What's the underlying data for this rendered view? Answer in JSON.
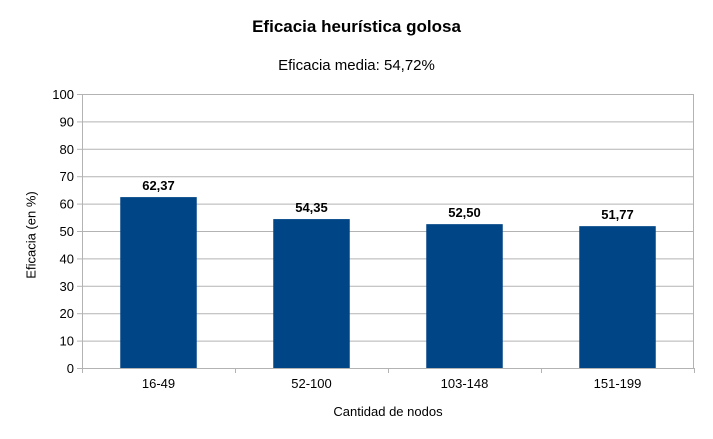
{
  "chart_data": {
    "type": "bar",
    "title": "Eficacia heurística golosa",
    "subtitle": "Eficacia media: 54,72%",
    "xlabel": "Cantidad de nodos",
    "ylabel": "Eficacia (en %)",
    "categories": [
      "16-49",
      "52-100",
      "103-148",
      "151-199"
    ],
    "values": [
      62.37,
      54.35,
      52.5,
      51.77
    ],
    "value_labels": [
      "62,37",
      "54,35",
      "52,50",
      "51,77"
    ],
    "ylim": [
      0,
      100
    ],
    "yticks": [
      0,
      10,
      20,
      30,
      40,
      50,
      60,
      70,
      80,
      90,
      100
    ],
    "grid": true,
    "legend": "none",
    "bar_color": "#004586"
  }
}
